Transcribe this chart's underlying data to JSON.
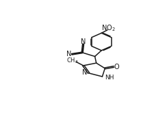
{
  "background_color": "#ffffff",
  "figsize": [
    2.26,
    1.74
  ],
  "dpi": 100,
  "line_color": "#1a1a1a",
  "line_width": 1.1,
  "xlim": [
    0,
    10
  ],
  "ylim": [
    0,
    10
  ]
}
